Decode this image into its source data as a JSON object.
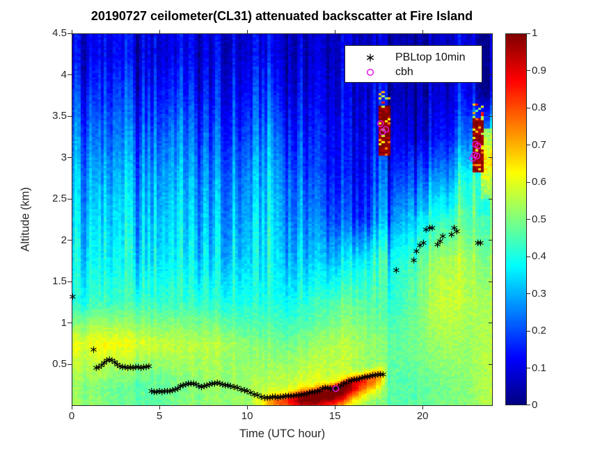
{
  "title": "20190727 ceilometer(CL31) attenuated backscatter at Fire Island",
  "colors": {
    "background": "#ffffff",
    "axis": "#262626",
    "title_text": "#000000",
    "pbl_marker": "#000000",
    "cbh_marker": "#e31ae3",
    "colormap_min": "#00008f",
    "colormap_max": "#800000"
  },
  "legend": {
    "entries": [
      {
        "symbol": "asterisk-marker-icon",
        "label": "PBLtop 10min"
      },
      {
        "symbol": "circle-marker-icon",
        "label": "cbh"
      }
    ]
  },
  "x_axis": {
    "label": "Time (UTC hour)",
    "range": [
      0,
      24
    ],
    "ticks": [
      {
        "value": 0,
        "label": "0"
      },
      {
        "value": 5,
        "label": "5"
      },
      {
        "value": 10,
        "label": "10"
      },
      {
        "value": 15,
        "label": "15"
      },
      {
        "value": 20,
        "label": "20"
      }
    ]
  },
  "y_axis": {
    "label": "Altitude (km)",
    "range": [
      0,
      4.5
    ],
    "ticks": [
      {
        "value": 0.5,
        "label": "0.5"
      },
      {
        "value": 1,
        "label": "1"
      },
      {
        "value": 1.5,
        "label": "1.5"
      },
      {
        "value": 2,
        "label": "2"
      },
      {
        "value": 2.5,
        "label": "2.5"
      },
      {
        "value": 3,
        "label": "3"
      },
      {
        "value": 3.5,
        "label": "3.5"
      },
      {
        "value": 4,
        "label": "4"
      },
      {
        "value": 4.5,
        "label": "4.5"
      }
    ]
  },
  "colorbar": {
    "range": [
      0,
      1
    ],
    "ticks": [
      {
        "value": 0,
        "label": "0"
      },
      {
        "value": 0.1,
        "label": "0.1"
      },
      {
        "value": 0.2,
        "label": "0.2"
      },
      {
        "value": 0.3,
        "label": "0.3"
      },
      {
        "value": 0.4,
        "label": "0.4"
      },
      {
        "value": 0.5,
        "label": "0.5"
      },
      {
        "value": 0.6,
        "label": "0.6"
      },
      {
        "value": 0.7,
        "label": "0.7"
      },
      {
        "value": 0.8,
        "label": "0.8"
      },
      {
        "value": 0.9,
        "label": "0.9"
      },
      {
        "value": 1,
        "label": "1"
      }
    ]
  },
  "chart_data": {
    "type": "heatmap",
    "title": "20190727 ceilometer(CL31) attenuated backscatter at Fire Island",
    "xlabel": "Time (UTC hour)",
    "ylabel": "Altitude (km)",
    "x_range_utc_hour": [
      0,
      24
    ],
    "y_range_km": [
      0,
      4.5
    ],
    "colormap": "jet",
    "color_limits": [
      0,
      1
    ],
    "legend_position": "top-center-inside",
    "grid_off": true,
    "background_grid": {
      "comment": "coarse attenuated-backscatter field; rows top-to-bottom",
      "hour_centers": [
        0.5,
        1.5,
        2.5,
        3.5,
        4.5,
        5.5,
        6.5,
        7.5,
        8.5,
        9.5,
        10.5,
        11.5,
        12.5,
        13.5,
        14.5,
        15.5,
        16.5,
        17.5,
        18.5,
        19.5,
        20.5,
        21.5,
        22.5,
        23.5
      ],
      "altitude_centers_km": [
        4.25,
        3.75,
        3.25,
        2.75,
        2.25,
        1.75,
        1.25,
        0.75,
        0.25
      ],
      "values": [
        [
          0.1,
          0.1,
          0.12,
          0.1,
          0.1,
          0.1,
          0.12,
          0.1,
          0.1,
          0.08,
          0.1,
          0.1,
          0.08,
          0.06,
          0.05,
          0.05,
          0.05,
          0.05,
          0.05,
          0.05,
          0.06,
          0.08,
          0.08,
          0.08
        ],
        [
          0.17,
          0.15,
          0.18,
          0.15,
          0.15,
          0.16,
          0.18,
          0.15,
          0.14,
          0.12,
          0.16,
          0.16,
          0.12,
          0.09,
          0.07,
          0.06,
          0.06,
          0.08,
          0.06,
          0.06,
          0.08,
          0.1,
          0.12,
          0.1
        ],
        [
          0.24,
          0.21,
          0.24,
          0.22,
          0.22,
          0.24,
          0.25,
          0.22,
          0.2,
          0.18,
          0.22,
          0.24,
          0.18,
          0.14,
          0.11,
          0.09,
          0.08,
          0.12,
          0.1,
          0.1,
          0.12,
          0.16,
          0.22,
          0.4
        ],
        [
          0.29,
          0.27,
          0.3,
          0.28,
          0.28,
          0.3,
          0.3,
          0.28,
          0.26,
          0.24,
          0.28,
          0.3,
          0.24,
          0.19,
          0.14,
          0.11,
          0.1,
          0.16,
          0.18,
          0.22,
          0.26,
          0.3,
          0.38,
          0.5
        ],
        [
          0.33,
          0.32,
          0.34,
          0.32,
          0.32,
          0.34,
          0.34,
          0.32,
          0.3,
          0.28,
          0.32,
          0.33,
          0.28,
          0.24,
          0.19,
          0.17,
          0.15,
          0.22,
          0.28,
          0.34,
          0.4,
          0.44,
          0.46,
          0.48
        ],
        [
          0.36,
          0.36,
          0.37,
          0.36,
          0.36,
          0.37,
          0.37,
          0.36,
          0.34,
          0.33,
          0.35,
          0.36,
          0.33,
          0.31,
          0.29,
          0.31,
          0.36,
          0.38,
          0.4,
          0.45,
          0.52,
          0.56,
          0.53,
          0.53
        ],
        [
          0.4,
          0.43,
          0.43,
          0.43,
          0.43,
          0.43,
          0.43,
          0.43,
          0.41,
          0.4,
          0.4,
          0.4,
          0.39,
          0.41,
          0.43,
          0.46,
          0.46,
          0.44,
          0.42,
          0.48,
          0.55,
          0.58,
          0.55,
          0.55
        ],
        [
          0.6,
          0.62,
          0.62,
          0.6,
          0.58,
          0.57,
          0.56,
          0.56,
          0.55,
          0.52,
          0.5,
          0.49,
          0.49,
          0.51,
          0.53,
          0.55,
          0.53,
          0.5,
          0.47,
          0.49,
          0.52,
          0.54,
          0.52,
          0.56
        ],
        [
          0.52,
          0.5,
          0.48,
          0.47,
          0.46,
          0.48,
          0.5,
          0.52,
          0.52,
          0.52,
          0.54,
          0.56,
          0.58,
          0.6,
          0.58,
          0.57,
          0.52,
          0.49,
          0.46,
          0.46,
          0.48,
          0.5,
          0.5,
          0.56
        ]
      ]
    },
    "surface_plume": {
      "comment": "high-backscatter plume hugging the surface, ~11-18 UTC",
      "time_profile": [
        [
          10.3,
          0.0
        ],
        [
          11.5,
          0.18
        ],
        [
          12.5,
          0.28
        ],
        [
          13.2,
          0.42
        ],
        [
          14.0,
          0.45
        ],
        [
          15.2,
          0.48
        ],
        [
          16.0,
          0.4
        ],
        [
          16.8,
          0.3
        ],
        [
          17.6,
          0.22
        ],
        [
          18.0,
          0.0
        ]
      ],
      "center_altitude_km": [
        [
          10.3,
          0.03
        ],
        [
          12,
          0.06
        ],
        [
          13,
          0.08
        ],
        [
          14,
          0.12
        ],
        [
          15,
          0.17
        ],
        [
          16,
          0.26
        ],
        [
          17,
          0.33
        ],
        [
          18,
          0.4
        ]
      ],
      "sigma_above_km": 0.09,
      "sigma_below_km": 0.18
    },
    "clouds": [
      {
        "time_utc": [
          17.45,
          18.1
        ],
        "altitude_km": [
          3.02,
          3.62
        ],
        "value": 1.0
      },
      {
        "time_utc": [
          22.8,
          23.45
        ],
        "altitude_km": [
          2.82,
          3.47
        ],
        "value": 1.0
      }
    ],
    "warm_patch": {
      "time_utc": [
        23.35,
        24
      ],
      "altitude_km": [
        2.5,
        3.35
      ],
      "center_km": 2.95,
      "peak_value": 0.65
    },
    "series": [
      {
        "name": "PBLtop 10min",
        "marker": "asterisk",
        "color": "#000000",
        "points": [
          [
            0.05,
            1.32
          ],
          [
            1.25,
            0.68
          ],
          [
            1.4,
            0.46
          ],
          [
            1.55,
            0.47
          ],
          [
            1.7,
            0.49
          ],
          [
            1.85,
            0.52
          ],
          [
            2.0,
            0.55
          ],
          [
            2.15,
            0.56
          ],
          [
            2.3,
            0.55
          ],
          [
            2.45,
            0.53
          ],
          [
            2.6,
            0.5
          ],
          [
            2.75,
            0.48
          ],
          [
            2.9,
            0.47
          ],
          [
            3.05,
            0.47
          ],
          [
            3.2,
            0.46
          ],
          [
            3.35,
            0.47
          ],
          [
            3.5,
            0.46
          ],
          [
            3.65,
            0.47
          ],
          [
            3.8,
            0.47
          ],
          [
            3.95,
            0.46
          ],
          [
            4.1,
            0.47
          ],
          [
            4.25,
            0.47
          ],
          [
            4.4,
            0.48
          ],
          [
            4.55,
            0.18
          ],
          [
            4.7,
            0.17
          ],
          [
            4.85,
            0.17
          ],
          [
            5.0,
            0.18
          ],
          [
            5.15,
            0.17
          ],
          [
            5.3,
            0.18
          ],
          [
            5.45,
            0.18
          ],
          [
            5.6,
            0.18
          ],
          [
            5.75,
            0.19
          ],
          [
            5.9,
            0.2
          ],
          [
            6.05,
            0.21
          ],
          [
            6.2,
            0.24
          ],
          [
            6.35,
            0.25
          ],
          [
            6.5,
            0.26
          ],
          [
            6.65,
            0.27
          ],
          [
            6.8,
            0.27
          ],
          [
            6.95,
            0.27
          ],
          [
            7.1,
            0.26
          ],
          [
            7.25,
            0.24
          ],
          [
            7.4,
            0.23
          ],
          [
            7.55,
            0.24
          ],
          [
            7.7,
            0.25
          ],
          [
            7.85,
            0.26
          ],
          [
            8.0,
            0.27
          ],
          [
            8.15,
            0.27
          ],
          [
            8.3,
            0.28
          ],
          [
            8.45,
            0.27
          ],
          [
            8.6,
            0.26
          ],
          [
            8.75,
            0.25
          ],
          [
            8.9,
            0.25
          ],
          [
            9.05,
            0.24
          ],
          [
            9.25,
            0.23
          ],
          [
            9.45,
            0.22
          ],
          [
            9.65,
            0.2
          ],
          [
            9.85,
            0.19
          ],
          [
            10.0,
            0.18
          ],
          [
            10.2,
            0.16
          ],
          [
            10.4,
            0.14
          ],
          [
            10.6,
            0.13
          ],
          [
            10.8,
            0.11
          ],
          [
            11.0,
            0.1
          ],
          [
            11.15,
            0.1
          ],
          [
            11.3,
            0.1
          ],
          [
            11.45,
            0.11
          ],
          [
            11.6,
            0.11
          ],
          [
            11.75,
            0.1
          ],
          [
            11.9,
            0.11
          ],
          [
            12.05,
            0.11
          ],
          [
            12.2,
            0.12
          ],
          [
            12.35,
            0.12
          ],
          [
            12.5,
            0.12
          ],
          [
            12.65,
            0.12
          ],
          [
            12.8,
            0.13
          ],
          [
            12.95,
            0.13
          ],
          [
            13.1,
            0.14
          ],
          [
            13.25,
            0.14
          ],
          [
            13.4,
            0.15
          ],
          [
            13.55,
            0.16
          ],
          [
            13.7,
            0.17
          ],
          [
            13.85,
            0.17
          ],
          [
            14.0,
            0.18
          ],
          [
            14.15,
            0.19
          ],
          [
            14.3,
            0.21
          ],
          [
            14.45,
            0.22
          ],
          [
            14.6,
            0.22
          ],
          [
            14.75,
            0.21
          ],
          [
            14.9,
            0.21
          ],
          [
            15.05,
            0.22
          ],
          [
            15.2,
            0.23
          ],
          [
            15.35,
            0.25
          ],
          [
            15.5,
            0.27
          ],
          [
            15.65,
            0.28
          ],
          [
            15.8,
            0.3
          ],
          [
            15.95,
            0.31
          ],
          [
            16.1,
            0.32
          ],
          [
            16.25,
            0.32
          ],
          [
            16.4,
            0.33
          ],
          [
            16.55,
            0.34
          ],
          [
            16.7,
            0.35
          ],
          [
            16.85,
            0.35
          ],
          [
            17.0,
            0.36
          ],
          [
            17.15,
            0.37
          ],
          [
            17.3,
            0.37
          ],
          [
            17.45,
            0.38
          ],
          [
            17.6,
            0.38
          ],
          [
            17.75,
            0.38
          ],
          [
            18.5,
            1.64
          ],
          [
            19.5,
            1.76
          ],
          [
            19.65,
            1.87
          ],
          [
            19.85,
            1.94
          ],
          [
            20.05,
            1.97
          ],
          [
            20.2,
            2.13
          ],
          [
            20.4,
            2.15
          ],
          [
            20.55,
            2.15
          ],
          [
            20.85,
            1.95
          ],
          [
            21.0,
            1.99
          ],
          [
            21.15,
            2.05
          ],
          [
            21.65,
            2.07
          ],
          [
            21.8,
            2.15
          ],
          [
            21.95,
            2.11
          ],
          [
            23.15,
            1.97
          ],
          [
            23.3,
            1.97
          ]
        ]
      },
      {
        "name": "cbh",
        "marker": "circle",
        "color": "#e31ae3",
        "points": [
          [
            15.05,
            0.21
          ],
          [
            17.6,
            3.41
          ],
          [
            17.72,
            3.31
          ],
          [
            17.9,
            3.34
          ],
          [
            22.85,
            2.99
          ],
          [
            22.95,
            3.03
          ],
          [
            23.0,
            3.16
          ],
          [
            23.1,
            3.02
          ],
          [
            23.15,
            3.14
          ]
        ]
      }
    ]
  }
}
